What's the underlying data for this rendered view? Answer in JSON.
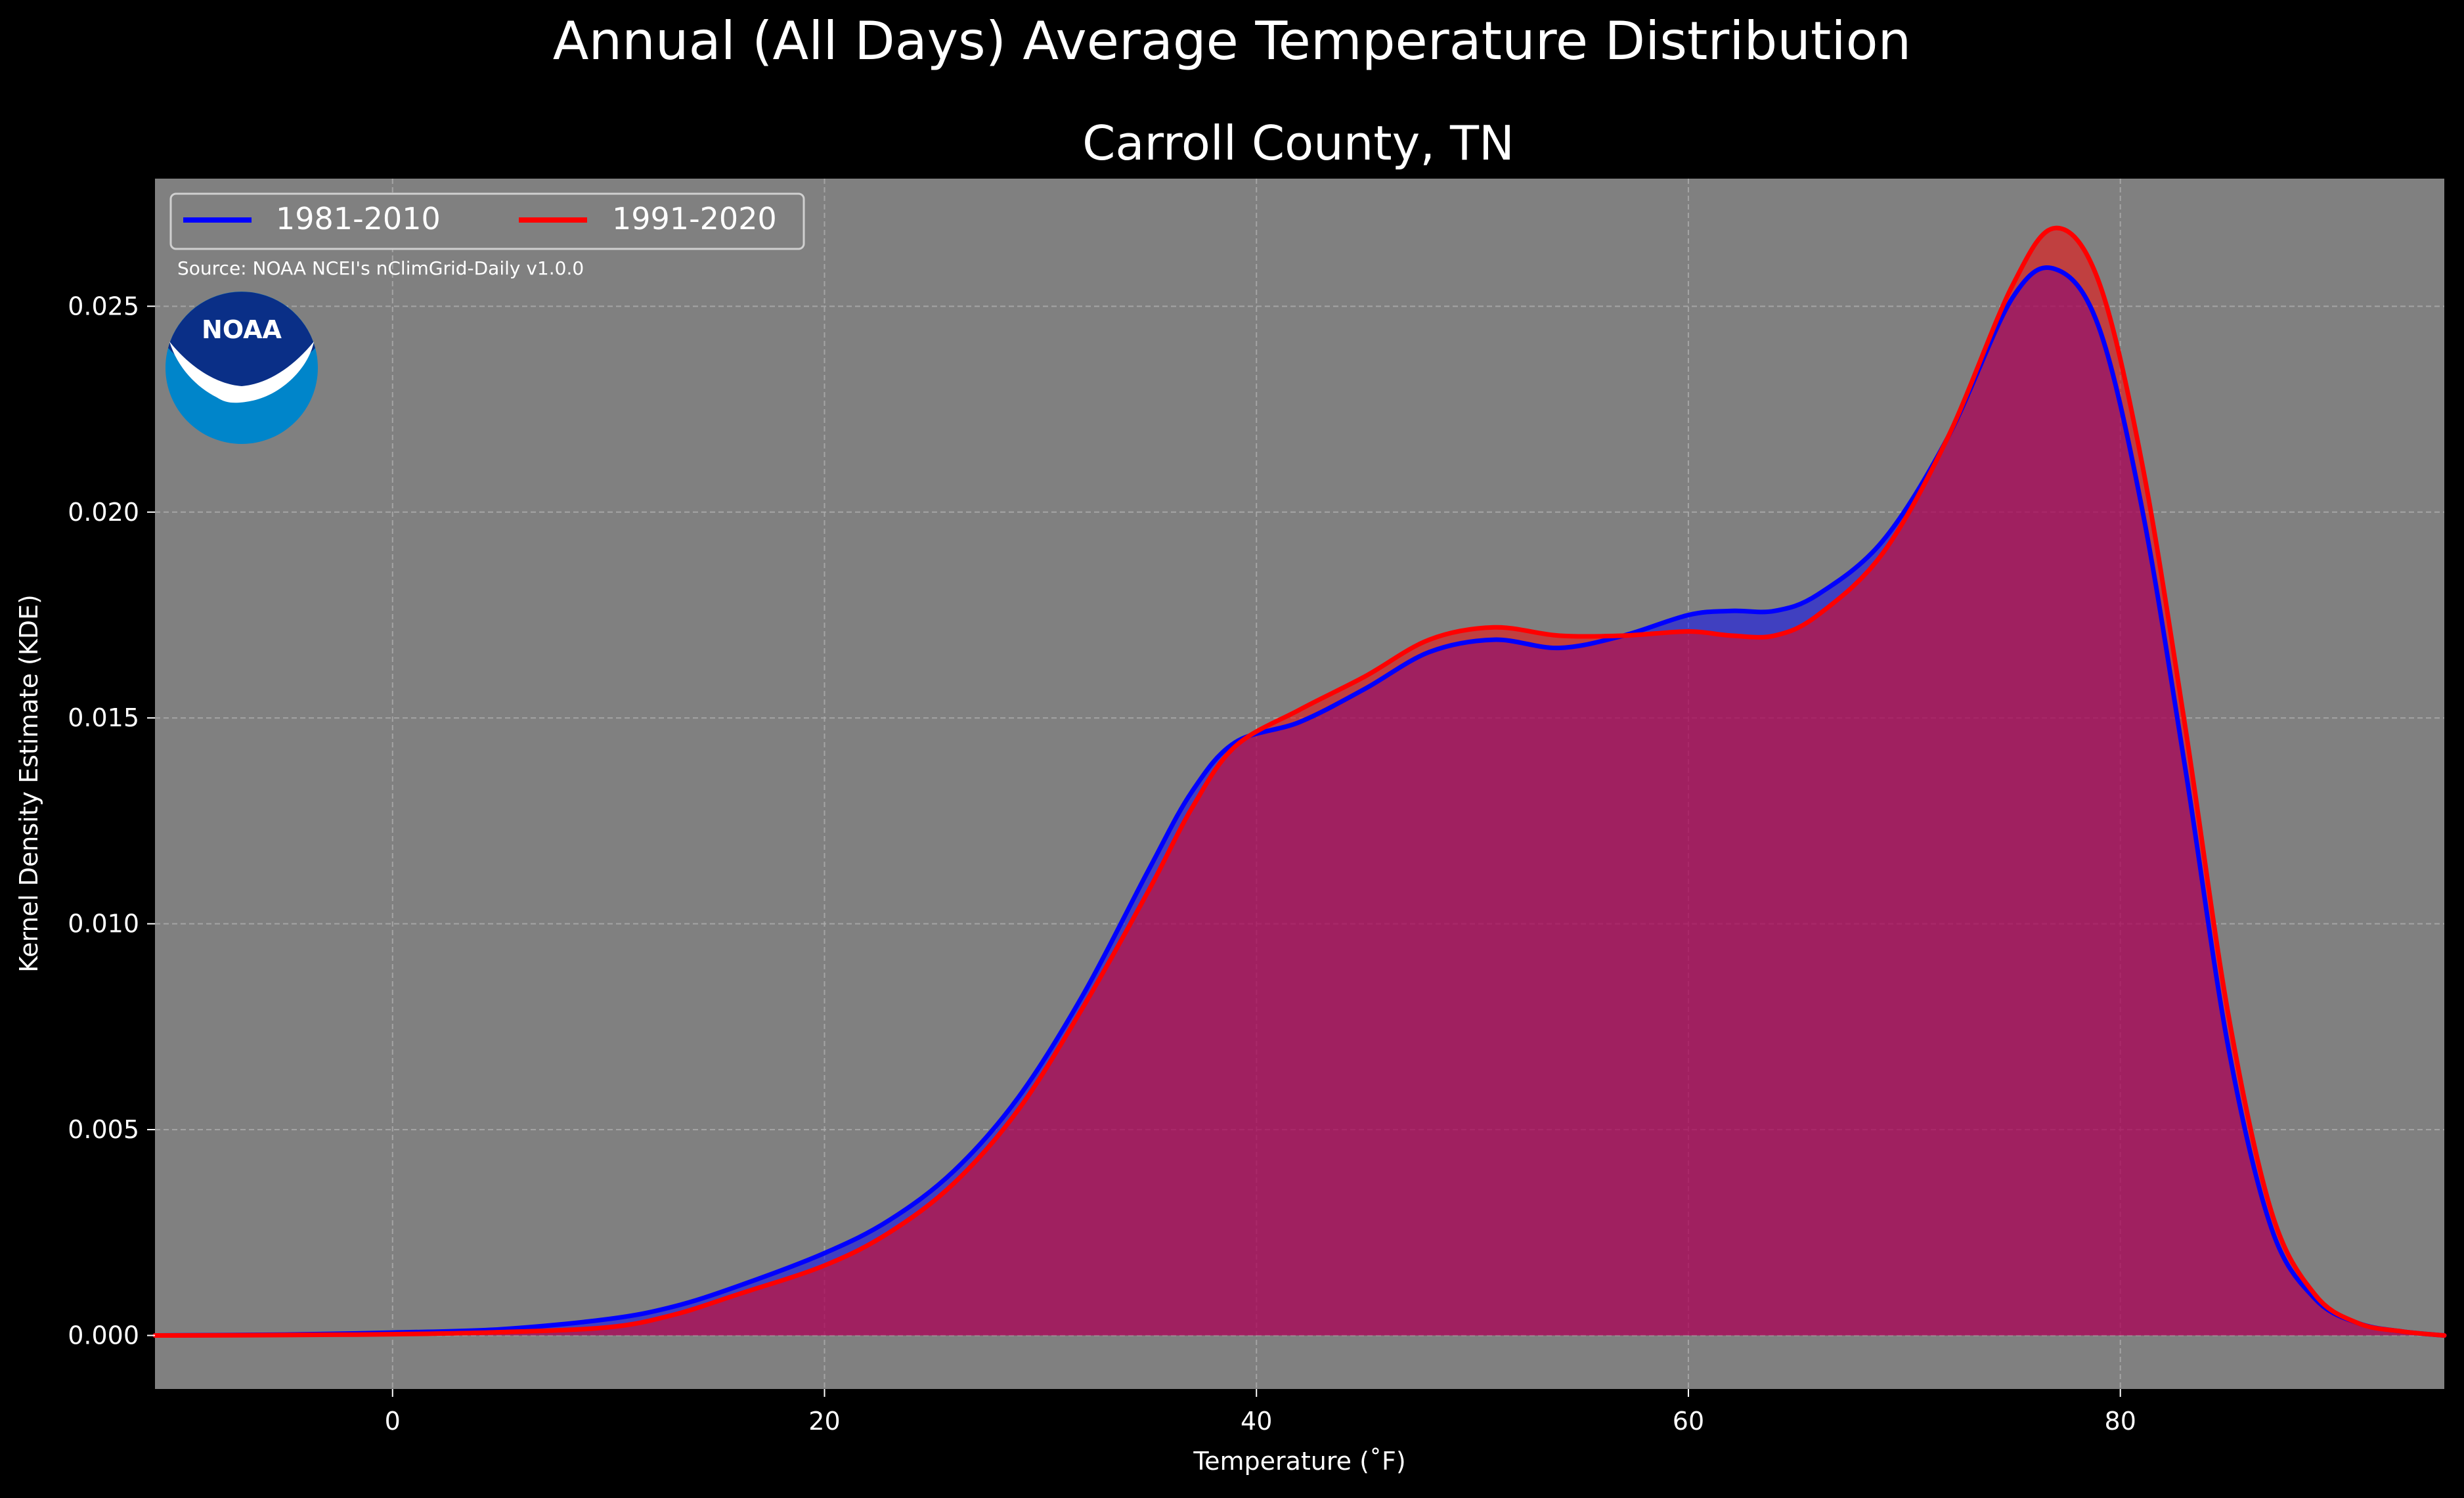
{
  "figure": {
    "suptitle": "Annual (All Days) Average Temperature Distribution",
    "source_note": "Source: NOAA NCEI's nClimGrid-Daily v1.0.0",
    "logo_text": "NOAA"
  },
  "colors": {
    "background": "#000000",
    "plot_background": "#808080",
    "grid": "#b0b0b0",
    "text": "#ffffff",
    "series_1981_2010": "#0000ff",
    "series_1991_2020": "#ff0000",
    "noaa_dark_blue": "#0a2f87",
    "noaa_light_blue": "#0085ca"
  },
  "chart_data": {
    "type": "area",
    "title": "Carroll County, TN",
    "xlabel": "Temperature ($^\\circ$F)",
    "xlabel_display": "Temperature (˚F)",
    "ylabel": "Kernel Density Estimate (KDE)",
    "xlim": [
      -11,
      95
    ],
    "ylim": [
      -0.0013,
      0.0281
    ],
    "xticks": [
      0,
      20,
      40,
      60,
      80
    ],
    "xtick_labels": [
      "0",
      "20",
      "40",
      "60",
      "80"
    ],
    "yticks": [
      0.0,
      0.005,
      0.01,
      0.015,
      0.02,
      0.025
    ],
    "ytick_labels": [
      "0.000",
      "0.005",
      "0.010",
      "0.015",
      "0.020",
      "0.025"
    ],
    "grid": true,
    "legend_position": "top-left",
    "legend_columns": 2,
    "series": [
      {
        "name": "1981-2010",
        "color": "#0000ff",
        "points": [
          [
            -11,
            0.0
          ],
          [
            -5,
            2e-05
          ],
          [
            0,
            7e-05
          ],
          [
            5,
            0.00015
          ],
          [
            10,
            0.0004
          ],
          [
            13,
            0.0007
          ],
          [
            16,
            0.0012
          ],
          [
            20,
            0.002
          ],
          [
            23,
            0.0028
          ],
          [
            26,
            0.004
          ],
          [
            29,
            0.0058
          ],
          [
            32,
            0.0083
          ],
          [
            35,
            0.0113
          ],
          [
            37,
            0.0132
          ],
          [
            39,
            0.0144
          ],
          [
            42,
            0.0149
          ],
          [
            45,
            0.0157
          ],
          [
            48,
            0.0166
          ],
          [
            51,
            0.0169
          ],
          [
            54,
            0.0167
          ],
          [
            57,
            0.017
          ],
          [
            60,
            0.0175
          ],
          [
            62,
            0.0176
          ],
          [
            64,
            0.0176
          ],
          [
            66,
            0.018
          ],
          [
            69,
            0.0193
          ],
          [
            72,
            0.0218
          ],
          [
            75,
            0.0252
          ],
          [
            77,
            0.0259
          ],
          [
            79,
            0.0245
          ],
          [
            81,
            0.0201
          ],
          [
            83,
            0.0138
          ],
          [
            85,
            0.007
          ],
          [
            87,
            0.0026
          ],
          [
            89,
            0.0009
          ],
          [
            91,
            0.0003
          ],
          [
            93,
            0.0001
          ],
          [
            95,
            0.0
          ]
        ]
      },
      {
        "name": "1991-2020",
        "color": "#ff0000",
        "points": [
          [
            -11,
            0.0
          ],
          [
            -5,
            1e-05
          ],
          [
            0,
            3e-05
          ],
          [
            5,
            8e-05
          ],
          [
            10,
            0.0002
          ],
          [
            13,
            0.0005
          ],
          [
            16,
            0.001
          ],
          [
            20,
            0.0017
          ],
          [
            23,
            0.0025
          ],
          [
            26,
            0.0037
          ],
          [
            29,
            0.0055
          ],
          [
            32,
            0.008
          ],
          [
            35,
            0.0108
          ],
          [
            37,
            0.0128
          ],
          [
            39,
            0.0143
          ],
          [
            42,
            0.0152
          ],
          [
            45,
            0.016
          ],
          [
            48,
            0.0169
          ],
          [
            51,
            0.0172
          ],
          [
            54,
            0.017
          ],
          [
            57,
            0.017
          ],
          [
            60,
            0.0171
          ],
          [
            62,
            0.017
          ],
          [
            64,
            0.017
          ],
          [
            66,
            0.0175
          ],
          [
            69,
            0.019
          ],
          [
            72,
            0.0218
          ],
          [
            75,
            0.0255
          ],
          [
            77,
            0.0269
          ],
          [
            79,
            0.0256
          ],
          [
            81,
            0.0212
          ],
          [
            83,
            0.0148
          ],
          [
            85,
            0.0078
          ],
          [
            87,
            0.003
          ],
          [
            89,
            0.001
          ],
          [
            91,
            0.0003
          ],
          [
            93,
            0.0001
          ],
          [
            95,
            0.0
          ]
        ]
      }
    ]
  }
}
